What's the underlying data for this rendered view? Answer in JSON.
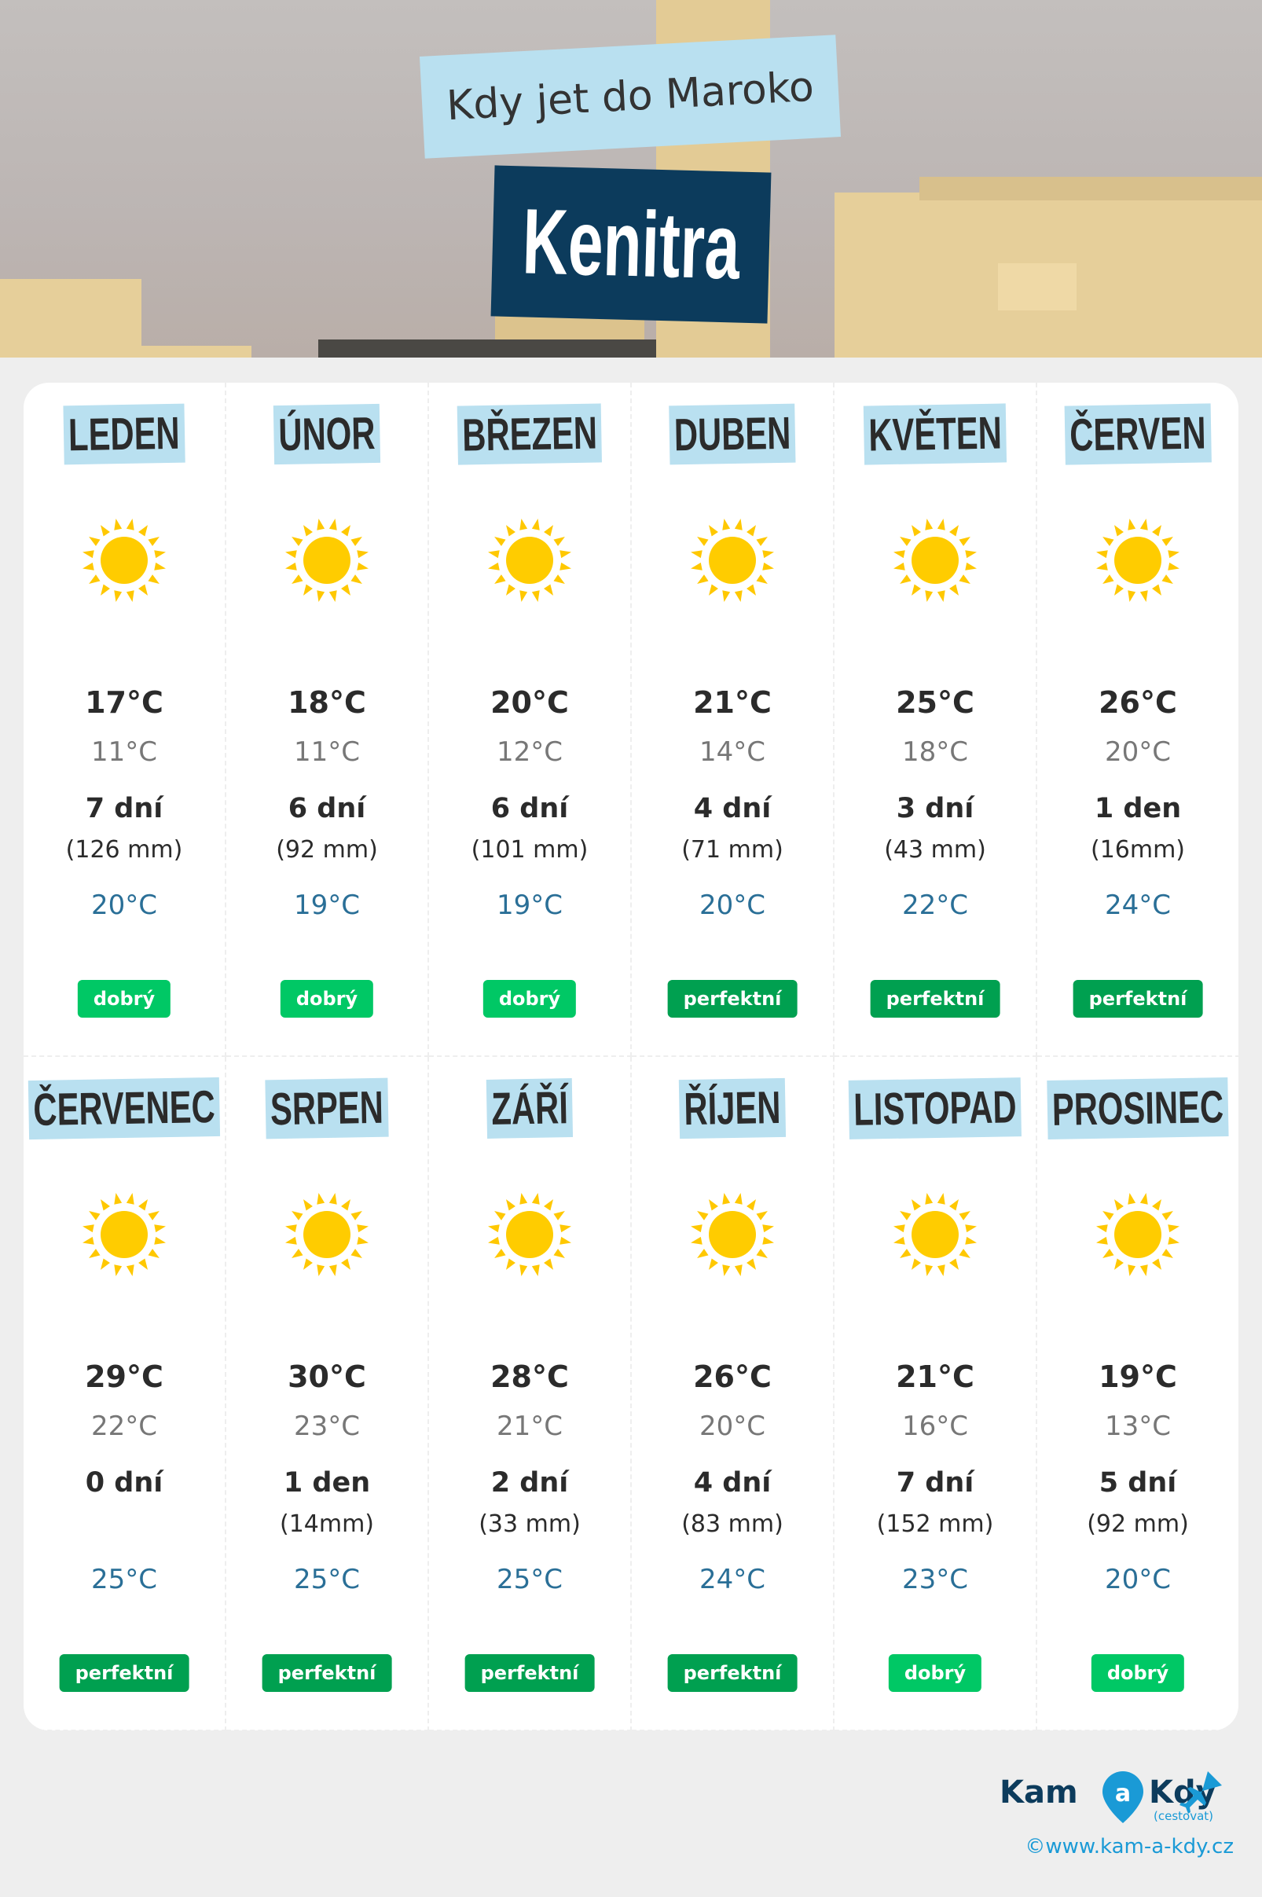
{
  "header": {
    "subtitle": "Kdy jet do Maroko",
    "city": "Kenitra"
  },
  "colors": {
    "dobrý": "#00c865",
    "perfektní": "#00a050",
    "sea": "#2a6f97",
    "label_bg": "#b9e0f0",
    "city_bg": "#0c3b5c"
  },
  "months": [
    {
      "name": "LEDEN",
      "icon": "sun-icon",
      "max": "17°C",
      "min": "11°C",
      "rain_days": "7 dní",
      "rain_mm": "(126 mm)",
      "sea": "20°C",
      "rating": "dobrý"
    },
    {
      "name": "ÚNOR",
      "icon": "sun-icon",
      "max": "18°C",
      "min": "11°C",
      "rain_days": "6 dní",
      "rain_mm": "(92 mm)",
      "sea": "19°C",
      "rating": "dobrý"
    },
    {
      "name": "BŘEZEN",
      "icon": "sun-icon",
      "max": "20°C",
      "min": "12°C",
      "rain_days": "6 dní",
      "rain_mm": "(101 mm)",
      "sea": "19°C",
      "rating": "dobrý"
    },
    {
      "name": "DUBEN",
      "icon": "sun-icon",
      "max": "21°C",
      "min": "14°C",
      "rain_days": "4 dní",
      "rain_mm": "(71 mm)",
      "sea": "20°C",
      "rating": "perfektní"
    },
    {
      "name": "KVĚTEN",
      "icon": "sun-icon",
      "max": "25°C",
      "min": "18°C",
      "rain_days": "3 dní",
      "rain_mm": "(43 mm)",
      "sea": "22°C",
      "rating": "perfektní"
    },
    {
      "name": "ČERVEN",
      "icon": "sun-icon",
      "max": "26°C",
      "min": "20°C",
      "rain_days": "1 den",
      "rain_mm": "(16mm)",
      "sea": "24°C",
      "rating": "perfektní"
    },
    {
      "name": "ČERVENEC",
      "icon": "sun-icon",
      "max": "29°C",
      "min": "22°C",
      "rain_days": "0 dní",
      "rain_mm": "",
      "sea": "25°C",
      "rating": "perfektní"
    },
    {
      "name": "SRPEN",
      "icon": "sun-icon",
      "max": "30°C",
      "min": "23°C",
      "rain_days": "1 den",
      "rain_mm": "(14mm)",
      "sea": "25°C",
      "rating": "perfektní"
    },
    {
      "name": "ZÁŘÍ",
      "icon": "sun-icon",
      "max": "28°C",
      "min": "21°C",
      "rain_days": "2 dní",
      "rain_mm": "(33 mm)",
      "sea": "25°C",
      "rating": "perfektní"
    },
    {
      "name": "ŘÍJEN",
      "icon": "sun-icon",
      "max": "26°C",
      "min": "20°C",
      "rain_days": "4 dní",
      "rain_mm": "(83 mm)",
      "sea": "24°C",
      "rating": "perfektní"
    },
    {
      "name": "LISTOPAD",
      "icon": "sun-icon",
      "max": "21°C",
      "min": "16°C",
      "rain_days": "7 dní",
      "rain_mm": "(152 mm)",
      "sea": "23°C",
      "rating": "dobrý"
    },
    {
      "name": "PROSINEC",
      "icon": "sun-icon",
      "max": "19°C",
      "min": "13°C",
      "rain_days": "5 dní",
      "rain_mm": "(92 mm)",
      "sea": "20°C",
      "rating": "dobrý"
    }
  ],
  "footer": {
    "logo_kam": "Kam",
    "logo_a": "a",
    "logo_kdy": "Kdy",
    "logo_sub": "(cestovat)",
    "url": "©www.kam-a-kdy.cz"
  }
}
